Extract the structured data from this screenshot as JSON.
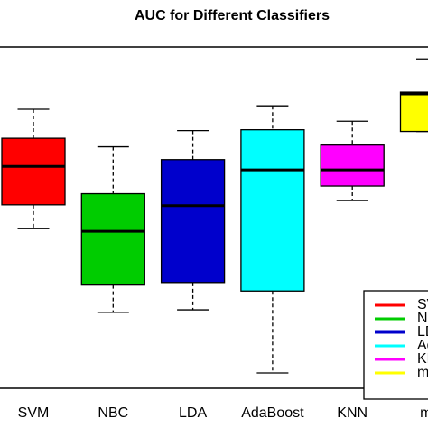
{
  "chart_data": {
    "type": "box",
    "title": "AUC for Different Classifiers",
    "categories": [
      "SVM",
      "NBC",
      "LDA",
      "AdaBoost",
      "KNN",
      "mM"
    ],
    "colors": [
      "#ff0000",
      "#00cc00",
      "#0000cc",
      "#00ffff",
      "#ff00ff",
      "#ffff00"
    ],
    "boxes": [
      {
        "min": 0.787,
        "q1": 0.815,
        "median": 0.86,
        "q3": 0.893,
        "max": 0.927
      },
      {
        "min": 0.689,
        "q1": 0.721,
        "median": 0.784,
        "q3": 0.828,
        "max": 0.883
      },
      {
        "min": 0.692,
        "q1": 0.724,
        "median": 0.814,
        "q3": 0.868,
        "max": 0.902
      },
      {
        "min": 0.618,
        "q1": 0.714,
        "median": 0.856,
        "q3": 0.903,
        "max": 0.931
      },
      {
        "min": 0.82,
        "q1": 0.837,
        "median": 0.856,
        "q3": 0.885,
        "max": 0.913
      },
      {
        "min": 0.901,
        "q1": 0.901,
        "median": 0.945,
        "q3": 0.947,
        "max": 0.986
      }
    ],
    "ylim": [
      0.6,
      1.0
    ],
    "legend": "bottom-right"
  }
}
